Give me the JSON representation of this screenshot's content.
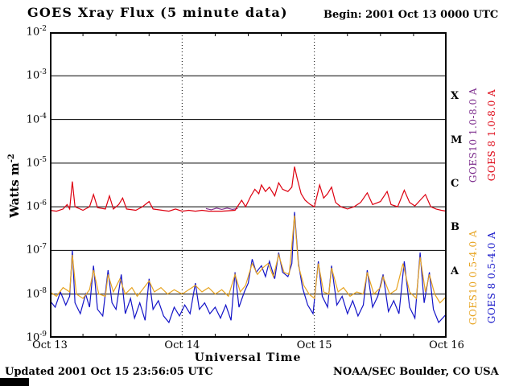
{
  "header": {
    "title": "GOES Xray Flux (5 minute data)",
    "begin": "Begin: 2001 Oct 13 0000 UTC"
  },
  "footer": {
    "updated": "Updated 2001 Oct 15 23:56:05 UTC",
    "org": "NOAA/SEC Boulder, CO USA"
  },
  "axes": {
    "y_label_main": "Watts m",
    "y_label_sup": "-2",
    "x_label": "Universal Time"
  },
  "legend": {
    "items": [
      {
        "label": "GOES10 1.0-8.0 A",
        "color": "#7d2e8d"
      },
      {
        "label": "GOES 8 1.0-8.0 A",
        "color": "#dd0010"
      },
      {
        "label": "GOES10 0.5-4.0 A",
        "color": "#e7a422"
      },
      {
        "label": "GOES 8 0.5-4.0 A",
        "color": "#1414c8"
      }
    ]
  },
  "chart_data": {
    "type": "line",
    "title": "GOES Xray Flux (5 minute data)",
    "xlabel": "Universal Time",
    "ylabel": "Watts m^-2",
    "x_unit": "days since 2001 Oct 13 0000 UTC",
    "y_scale": "log10",
    "xlim": [
      0,
      3
    ],
    "ylim_log10": [
      -9,
      -2
    ],
    "x_ticks": [
      {
        "x": 0,
        "label": "Oct 13"
      },
      {
        "x": 1,
        "label": "Oct 14"
      },
      {
        "x": 2,
        "label": "Oct 15"
      },
      {
        "x": 3,
        "label": "Oct 16"
      }
    ],
    "y_tick_exponents": [
      -2,
      -3,
      -4,
      -5,
      -6,
      -7,
      -8,
      -9
    ],
    "y_gridline_exponents": [
      -3,
      -4,
      -5,
      -6,
      -7,
      -8
    ],
    "x_gridlines": [
      1,
      2
    ],
    "x_minor_tick_step": 0.25,
    "flare_classes": [
      {
        "label": "X",
        "center_log10": -3.5
      },
      {
        "label": "M",
        "center_log10": -4.5
      },
      {
        "label": "C",
        "center_log10": -5.5
      },
      {
        "label": "B",
        "center_log10": -6.5
      },
      {
        "label": "A",
        "center_log10": -7.5
      }
    ],
    "series": [
      {
        "name": "GOES10 1.0-8.0 A",
        "color": "#7d2e8d",
        "points": [
          [
            1.18,
            -6.04
          ],
          [
            1.22,
            -6.07
          ],
          [
            1.26,
            -6.03
          ],
          [
            1.3,
            -6.06
          ],
          [
            1.34,
            -6.03
          ],
          [
            1.38,
            -6.06
          ],
          [
            1.42,
            -6.04
          ]
        ]
      },
      {
        "name": "GOES 8 1.0-8.0 A",
        "color": "#dd0010",
        "points": [
          [
            0.0,
            -6.08
          ],
          [
            0.05,
            -6.1
          ],
          [
            0.1,
            -6.05
          ],
          [
            0.13,
            -5.95
          ],
          [
            0.15,
            -6.05
          ],
          [
            0.17,
            -5.42
          ],
          [
            0.19,
            -6.0
          ],
          [
            0.25,
            -6.08
          ],
          [
            0.3,
            -6.0
          ],
          [
            0.33,
            -5.72
          ],
          [
            0.36,
            -6.02
          ],
          [
            0.42,
            -6.05
          ],
          [
            0.45,
            -5.75
          ],
          [
            0.48,
            -6.05
          ],
          [
            0.52,
            -5.95
          ],
          [
            0.55,
            -5.8
          ],
          [
            0.58,
            -6.05
          ],
          [
            0.65,
            -6.08
          ],
          [
            0.7,
            -6.0
          ],
          [
            0.75,
            -5.88
          ],
          [
            0.78,
            -6.05
          ],
          [
            0.85,
            -6.08
          ],
          [
            0.9,
            -6.1
          ],
          [
            0.95,
            -6.05
          ],
          [
            1.0,
            -6.1
          ],
          [
            1.05,
            -6.08
          ],
          [
            1.1,
            -6.1
          ],
          [
            1.15,
            -6.08
          ],
          [
            1.2,
            -6.1
          ],
          [
            1.3,
            -6.1
          ],
          [
            1.4,
            -6.08
          ],
          [
            1.45,
            -5.85
          ],
          [
            1.48,
            -6.0
          ],
          [
            1.52,
            -5.75
          ],
          [
            1.55,
            -5.6
          ],
          [
            1.58,
            -5.7
          ],
          [
            1.6,
            -5.5
          ],
          [
            1.63,
            -5.65
          ],
          [
            1.66,
            -5.55
          ],
          [
            1.7,
            -5.75
          ],
          [
            1.73,
            -5.45
          ],
          [
            1.76,
            -5.6
          ],
          [
            1.8,
            -5.65
          ],
          [
            1.83,
            -5.55
          ],
          [
            1.85,
            -5.08
          ],
          [
            1.87,
            -5.35
          ],
          [
            1.9,
            -5.7
          ],
          [
            1.93,
            -5.85
          ],
          [
            1.97,
            -5.95
          ],
          [
            2.0,
            -6.0
          ],
          [
            2.04,
            -5.5
          ],
          [
            2.07,
            -5.8
          ],
          [
            2.1,
            -5.7
          ],
          [
            2.13,
            -5.55
          ],
          [
            2.16,
            -5.9
          ],
          [
            2.2,
            -6.0
          ],
          [
            2.25,
            -6.05
          ],
          [
            2.3,
            -6.0
          ],
          [
            2.35,
            -5.9
          ],
          [
            2.4,
            -5.68
          ],
          [
            2.44,
            -5.95
          ],
          [
            2.5,
            -5.88
          ],
          [
            2.55,
            -5.65
          ],
          [
            2.58,
            -5.95
          ],
          [
            2.63,
            -6.0
          ],
          [
            2.68,
            -5.62
          ],
          [
            2.72,
            -5.9
          ],
          [
            2.76,
            -5.98
          ],
          [
            2.8,
            -5.85
          ],
          [
            2.84,
            -5.72
          ],
          [
            2.88,
            -6.0
          ],
          [
            2.92,
            -6.05
          ],
          [
            2.96,
            -6.08
          ],
          [
            3.0,
            -6.1
          ]
        ]
      },
      {
        "name": "GOES 8 0.5-4.0 A",
        "color": "#1414c8",
        "points": [
          [
            0.0,
            -8.15
          ],
          [
            0.04,
            -8.3
          ],
          [
            0.08,
            -7.95
          ],
          [
            0.12,
            -8.25
          ],
          [
            0.15,
            -8.05
          ],
          [
            0.17,
            -7.0
          ],
          [
            0.19,
            -8.2
          ],
          [
            0.23,
            -8.45
          ],
          [
            0.27,
            -8.0
          ],
          [
            0.3,
            -8.3
          ],
          [
            0.33,
            -7.35
          ],
          [
            0.36,
            -8.35
          ],
          [
            0.4,
            -8.5
          ],
          [
            0.44,
            -7.45
          ],
          [
            0.47,
            -8.2
          ],
          [
            0.5,
            -8.35
          ],
          [
            0.54,
            -7.55
          ],
          [
            0.57,
            -8.45
          ],
          [
            0.61,
            -8.1
          ],
          [
            0.64,
            -8.55
          ],
          [
            0.68,
            -8.2
          ],
          [
            0.72,
            -8.6
          ],
          [
            0.75,
            -7.65
          ],
          [
            0.78,
            -8.35
          ],
          [
            0.82,
            -8.15
          ],
          [
            0.86,
            -8.5
          ],
          [
            0.9,
            -8.65
          ],
          [
            0.94,
            -8.3
          ],
          [
            0.98,
            -8.5
          ],
          [
            1.02,
            -8.25
          ],
          [
            1.06,
            -8.45
          ],
          [
            1.1,
            -7.75
          ],
          [
            1.13,
            -8.35
          ],
          [
            1.17,
            -8.2
          ],
          [
            1.21,
            -8.45
          ],
          [
            1.25,
            -8.3
          ],
          [
            1.29,
            -8.55
          ],
          [
            1.33,
            -8.25
          ],
          [
            1.37,
            -8.6
          ],
          [
            1.4,
            -7.5
          ],
          [
            1.43,
            -8.3
          ],
          [
            1.47,
            -7.95
          ],
          [
            1.5,
            -7.75
          ],
          [
            1.53,
            -7.2
          ],
          [
            1.56,
            -7.5
          ],
          [
            1.6,
            -7.35
          ],
          [
            1.63,
            -7.6
          ],
          [
            1.66,
            -7.25
          ],
          [
            1.7,
            -7.65
          ],
          [
            1.73,
            -7.05
          ],
          [
            1.76,
            -7.5
          ],
          [
            1.8,
            -7.6
          ],
          [
            1.83,
            -7.3
          ],
          [
            1.85,
            -6.12
          ],
          [
            1.88,
            -7.3
          ],
          [
            1.91,
            -7.85
          ],
          [
            1.95,
            -8.25
          ],
          [
            1.99,
            -8.45
          ],
          [
            2.03,
            -7.25
          ],
          [
            2.06,
            -8.05
          ],
          [
            2.1,
            -8.3
          ],
          [
            2.13,
            -7.35
          ],
          [
            2.17,
            -8.25
          ],
          [
            2.21,
            -8.05
          ],
          [
            2.25,
            -8.45
          ],
          [
            2.29,
            -8.15
          ],
          [
            2.33,
            -8.5
          ],
          [
            2.37,
            -8.25
          ],
          [
            2.4,
            -7.45
          ],
          [
            2.44,
            -8.3
          ],
          [
            2.48,
            -8.05
          ],
          [
            2.52,
            -7.55
          ],
          [
            2.56,
            -8.4
          ],
          [
            2.6,
            -8.15
          ],
          [
            2.64,
            -8.45
          ],
          [
            2.68,
            -7.25
          ],
          [
            2.72,
            -8.3
          ],
          [
            2.76,
            -8.55
          ],
          [
            2.8,
            -7.05
          ],
          [
            2.83,
            -8.2
          ],
          [
            2.87,
            -7.5
          ],
          [
            2.9,
            -8.35
          ],
          [
            2.94,
            -8.65
          ],
          [
            3.0,
            -8.45
          ]
        ]
      },
      {
        "name": "GOES10 0.5-4.0 A",
        "color": "#e7a422",
        "points": [
          [
            0.0,
            -7.95
          ],
          [
            0.05,
            -8.05
          ],
          [
            0.1,
            -7.85
          ],
          [
            0.15,
            -7.95
          ],
          [
            0.17,
            -7.1
          ],
          [
            0.2,
            -8.0
          ],
          [
            0.25,
            -8.1
          ],
          [
            0.3,
            -7.9
          ],
          [
            0.33,
            -7.45
          ],
          [
            0.37,
            -8.0
          ],
          [
            0.42,
            -8.05
          ],
          [
            0.44,
            -7.55
          ],
          [
            0.48,
            -7.95
          ],
          [
            0.53,
            -7.65
          ],
          [
            0.57,
            -8.0
          ],
          [
            0.62,
            -7.85
          ],
          [
            0.66,
            -8.05
          ],
          [
            0.7,
            -7.9
          ],
          [
            0.75,
            -7.7
          ],
          [
            0.79,
            -7.95
          ],
          [
            0.84,
            -7.85
          ],
          [
            0.89,
            -8.0
          ],
          [
            0.94,
            -7.9
          ],
          [
            1.0,
            -8.0
          ],
          [
            1.05,
            -7.9
          ],
          [
            1.1,
            -7.8
          ],
          [
            1.15,
            -7.95
          ],
          [
            1.2,
            -7.85
          ],
          [
            1.25,
            -8.0
          ],
          [
            1.3,
            -7.9
          ],
          [
            1.35,
            -8.05
          ],
          [
            1.4,
            -7.55
          ],
          [
            1.44,
            -7.95
          ],
          [
            1.48,
            -7.8
          ],
          [
            1.53,
            -7.3
          ],
          [
            1.57,
            -7.55
          ],
          [
            1.61,
            -7.4
          ],
          [
            1.65,
            -7.3
          ],
          [
            1.69,
            -7.6
          ],
          [
            1.73,
            -7.1
          ],
          [
            1.77,
            -7.5
          ],
          [
            1.81,
            -7.55
          ],
          [
            1.85,
            -6.2
          ],
          [
            1.88,
            -7.35
          ],
          [
            1.92,
            -7.8
          ],
          [
            1.96,
            -8.0
          ],
          [
            2.0,
            -8.1
          ],
          [
            2.03,
            -7.3
          ],
          [
            2.07,
            -7.95
          ],
          [
            2.11,
            -8.0
          ],
          [
            2.13,
            -7.4
          ],
          [
            2.18,
            -7.95
          ],
          [
            2.22,
            -7.85
          ],
          [
            2.27,
            -8.05
          ],
          [
            2.32,
            -7.95
          ],
          [
            2.37,
            -8.0
          ],
          [
            2.4,
            -7.5
          ],
          [
            2.45,
            -8.0
          ],
          [
            2.5,
            -7.85
          ],
          [
            2.52,
            -7.6
          ],
          [
            2.57,
            -8.0
          ],
          [
            2.62,
            -7.9
          ],
          [
            2.67,
            -7.3
          ],
          [
            2.72,
            -7.95
          ],
          [
            2.77,
            -8.1
          ],
          [
            2.8,
            -7.15
          ],
          [
            2.84,
            -7.95
          ],
          [
            2.87,
            -7.55
          ],
          [
            2.91,
            -8.0
          ],
          [
            2.95,
            -8.2
          ],
          [
            3.0,
            -8.05
          ]
        ]
      }
    ]
  }
}
